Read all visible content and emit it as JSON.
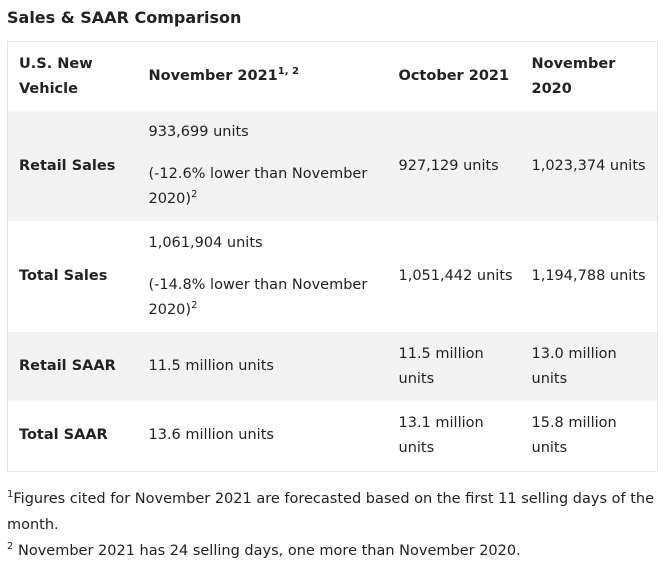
{
  "title": "Sales & SAAR Comparison",
  "table": {
    "header": [
      "U.S. New Vehicle",
      "November 2021",
      "October 2021",
      "November 2020"
    ],
    "header_note": "1, 2",
    "rows": [
      {
        "label": "Retail Sales",
        "cells": [
          {
            "main": "933,699 units",
            "detail": "(-12.6% lower than November 2020)",
            "note": "2"
          },
          "927,129 units",
          "1,023,374 units"
        ]
      },
      {
        "label": "Total Sales",
        "cells": [
          {
            "main": "1,061,904 units",
            "detail": "(-14.8% lower than November 2020)",
            "note": "2"
          },
          "1,051,442 units",
          "1,194,788 units"
        ]
      },
      {
        "label": "Retail SAAR",
        "cells": [
          "11.5 million units",
          "11.5 million units",
          "13.0 million units"
        ]
      },
      {
        "label": "Total SAAR",
        "cells": [
          "13.6 million units",
          "13.1 million units",
          "15.8 million units"
        ]
      }
    ]
  },
  "footnotes": [
    {
      "mark": "1",
      "text": "Figures cited for November 2021 are forecasted based on the first 11 selling days of the month."
    },
    {
      "mark": "2",
      "text": "November 2021 has 24 selling days, one more than November 2020."
    }
  ]
}
